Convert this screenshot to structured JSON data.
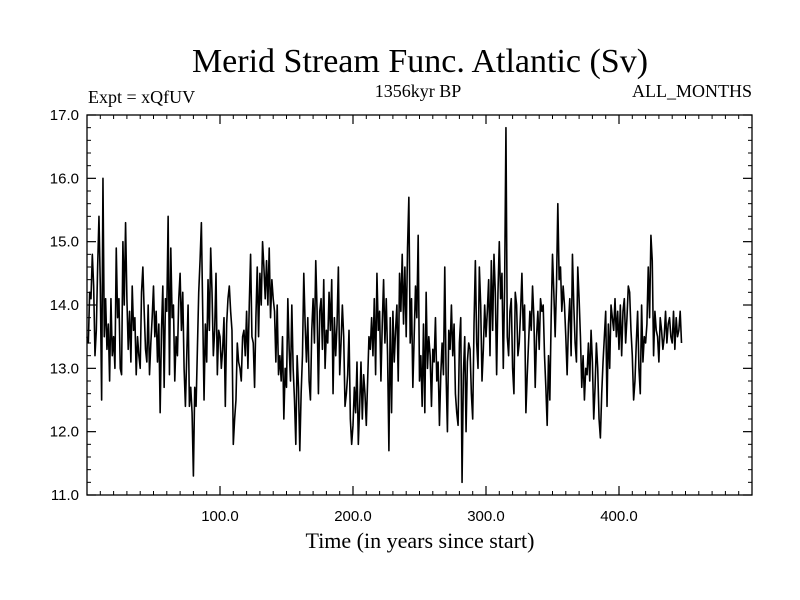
{
  "chart_data": {
    "type": "line",
    "title": "Merid Stream Func. Atlantic (Sv)",
    "subtitle_left": "Expt = xQfUV",
    "subtitle_center": "1356kyr BP",
    "subtitle_right": "ALL_MONTHS",
    "xlabel": "Time (in years since start)",
    "ylabel": "",
    "xlim": [
      0,
      500
    ],
    "ylim": [
      11.0,
      17.0
    ],
    "xticks": [
      100,
      200,
      300,
      400
    ],
    "xtick_labels": [
      "100.0",
      "200.0",
      "300.0",
      "400.0"
    ],
    "yticks": [
      11,
      12,
      13,
      14,
      15,
      16,
      17
    ],
    "ytick_labels": [
      "11.0",
      "12.0",
      "13.0",
      "14.0",
      "15.0",
      "16.0",
      "17.0"
    ],
    "grid": false,
    "series": [
      {
        "name": "Merid Stream Func. Atlantic",
        "x_start": 0,
        "x_step": 1,
        "values": [
          13.5,
          13.4,
          14.2,
          14.1,
          14.8,
          14.3,
          13.2,
          13.6,
          14.6,
          15.4,
          14.3,
          12.5,
          16.0,
          13.5,
          14.1,
          13.3,
          13.7,
          12.8,
          14.1,
          13.2,
          13.5,
          13.0,
          14.9,
          13.8,
          14.1,
          13.0,
          12.9,
          15.0,
          14.0,
          15.3,
          14.1,
          13.3,
          13.9,
          13.1,
          14.3,
          13.6,
          13.8,
          12.9,
          13.5,
          13.2,
          13.0,
          14.2,
          14.6,
          13.9,
          13.3,
          13.1,
          14.0,
          12.9,
          13.4,
          13.8,
          14.3,
          13.5,
          13.9,
          13.1,
          13.7,
          12.3,
          13.6,
          14.3,
          12.7,
          14.1,
          13.9,
          15.4,
          12.9,
          14.9,
          13.8,
          14.0,
          12.8,
          13.5,
          13.2,
          14.1,
          14.5,
          13.6,
          14.2,
          13.0,
          12.4,
          13.2,
          14.0,
          12.4,
          12.7,
          12.3,
          11.3,
          12.7,
          12.4,
          13.3,
          14.2,
          14.7,
          15.3,
          13.9,
          12.5,
          13.7,
          13.1,
          14.4,
          13.6,
          14.9,
          14.2,
          13.2,
          13.6,
          14.5,
          12.9,
          13.6,
          13.5,
          13.0,
          13.3,
          13.8,
          12.4,
          13.7,
          14.1,
          14.3,
          13.9,
          13.6,
          11.8,
          12.2,
          12.5,
          13.4,
          13.1,
          13.0,
          12.8,
          13.5,
          13.6,
          13.2,
          13.9,
          13.0,
          14.0,
          14.8,
          13.5,
          13.4,
          12.7,
          13.8,
          14.6,
          13.5,
          14.5,
          14.0,
          15.0,
          14.6,
          14.1,
          14.7,
          14.0,
          14.9,
          13.8,
          14.4,
          14.1,
          13.9,
          13.1,
          14.0,
          12.9,
          13.2,
          12.8,
          13.5,
          12.2,
          13.0,
          12.7,
          14.1,
          13.3,
          12.8,
          14.0,
          13.0,
          12.5,
          11.8,
          13.2,
          12.7,
          11.7,
          12.6,
          13.2,
          14.5,
          13.7,
          13.1,
          13.8,
          12.8,
          12.5,
          13.6,
          14.1,
          13.4,
          14.7,
          13.9,
          12.6,
          13.9,
          14.1,
          13.3,
          14.4,
          13.0,
          13.6,
          13.4,
          14.2,
          13.6,
          14.4,
          12.6,
          13.8,
          13.2,
          13.7,
          14.6,
          12.9,
          13.4,
          14.0,
          13.5,
          12.4,
          12.6,
          12.9,
          13.6,
          12.2,
          11.8,
          12.1,
          12.7,
          12.3,
          13.1,
          11.8,
          12.4,
          13.1,
          12.2,
          12.9,
          12.6,
          12.1,
          12.8,
          13.5,
          13.3,
          13.8,
          13.2,
          14.1,
          12.9,
          14.5,
          13.6,
          13.9,
          12.8,
          13.7,
          14.4,
          13.4,
          14.1,
          13.2,
          11.7,
          13.8,
          12.3,
          13.9,
          13.1,
          13.6,
          14.0,
          12.8,
          14.5,
          13.9,
          14.8,
          13.7,
          14.6,
          13.5,
          14.9,
          15.7,
          13.4,
          14.1,
          12.7,
          13.5,
          14.3,
          13.8,
          15.1,
          12.8,
          13.2,
          12.4,
          13.7,
          12.3,
          14.2,
          13.0,
          13.5,
          13.2,
          12.4,
          13.3,
          13.1,
          13.8,
          12.8,
          13.1,
          12.1,
          12.9,
          13.4,
          12.9,
          14.6,
          12.9,
          12.0,
          13.6,
          13.3,
          14.0,
          13.2,
          13.7,
          12.6,
          12.3,
          12.1,
          13.4,
          13.8,
          11.2,
          12.9,
          13.5,
          12.0,
          13.1,
          13.4,
          13.3,
          12.6,
          12.2,
          13.7,
          14.7,
          13.4,
          13.0,
          14.6,
          14.0,
          12.8,
          13.3,
          14.0,
          13.5,
          13.9,
          14.4,
          13.2,
          14.7,
          13.6,
          14.8,
          14.2,
          12.9,
          14.2,
          15.0,
          14.1,
          14.5,
          13.0,
          14.3,
          16.8,
          13.5,
          13.2,
          13.9,
          14.1,
          13.0,
          12.6,
          14.2,
          14.0,
          13.2,
          13.4,
          13.9,
          14.5,
          13.6,
          14.0,
          12.3,
          12.9,
          13.4,
          13.9,
          13.6,
          14.3,
          13.8,
          12.7,
          13.5,
          13.9,
          13.3,
          14.1,
          13.9,
          14.0,
          13.2,
          12.7,
          12.1,
          13.2,
          12.5,
          13.8,
          14.8,
          14.2,
          13.5,
          14.3,
          15.6,
          14.4,
          14.6,
          13.9,
          14.3,
          14.0,
          13.5,
          12.9,
          13.7,
          14.1,
          13.2,
          14.8,
          14.0,
          13.4,
          13.1,
          14.6,
          14.1,
          13.5,
          12.7,
          13.2,
          12.5,
          13.0,
          12.9,
          13.4,
          12.8,
          13.6,
          13.1,
          12.2,
          12.7,
          13.4,
          13.0,
          12.2,
          11.9,
          12.6,
          13.1,
          13.5,
          13.9,
          12.4,
          13.7,
          13.0,
          14.0,
          13.8,
          13.6,
          14.1,
          13.5,
          13.9,
          13.3,
          14.0,
          13.2,
          13.9,
          14.1,
          13.4,
          13.8,
          14.3,
          14.2,
          13.6,
          13.2,
          12.5,
          12.8,
          13.4,
          13.9,
          13.0,
          12.6,
          14.0,
          13.1,
          13.5,
          13.4,
          13.7,
          14.6,
          13.8,
          15.1,
          14.7,
          13.2,
          13.9,
          13.6,
          13.5,
          13.1,
          13.8,
          13.6,
          13.3,
          13.5,
          13.9,
          13.4,
          13.7,
          13.8,
          13.5,
          13.4,
          13.9,
          13.3,
          13.8,
          13.5,
          13.6,
          13.9,
          13.4
        ]
      }
    ]
  }
}
